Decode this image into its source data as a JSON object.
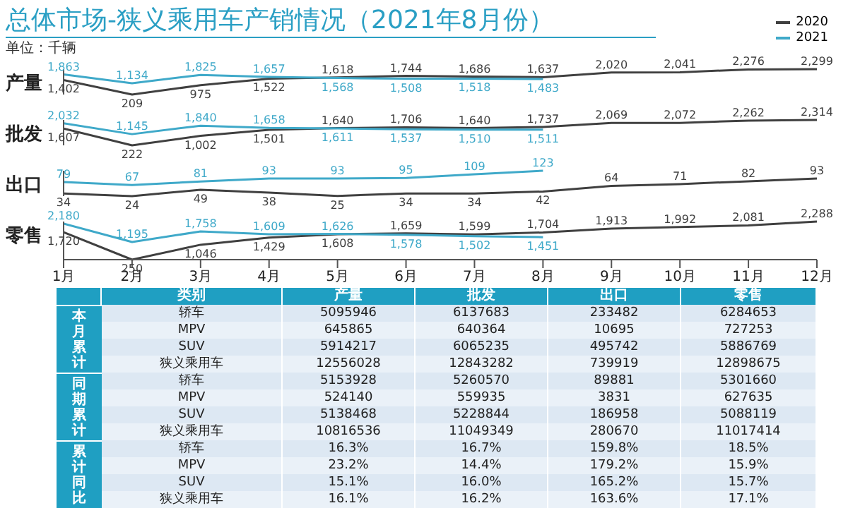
{
  "chart_data": [
    {
      "type": "line",
      "title": "总体市场-狭义乘用车产销情况（2021年8月份）",
      "subtitle": "单位：千辆",
      "ylabel": "产量",
      "categories": [
        null,
        null,
        null,
        null,
        null,
        null,
        null,
        null,
        null,
        null,
        null,
        null
      ],
      "marker": "none",
      "legend": "top right",
      "tick_labels": false,
      "series": [
        {
          "name": "2020",
          "color": "#404040",
          "values": [
            1402,
            209,
            975,
            1522,
            1618,
            1744,
            1686,
            1637,
            2020,
            2041,
            2276,
            2299
          ],
          "value_labels": [
            "1,402",
            "209",
            "975",
            "1,522",
            "1,618",
            "1,744",
            "1,686",
            "1,637",
            "2,020",
            "2,041",
            "2,276",
            "2,299"
          ]
        },
        {
          "name": "2021",
          "color": "#3fa9c9",
          "values": [
            1863,
            1134,
            1825,
            1657,
            1568,
            1508,
            1518,
            1483,
            null,
            null,
            null,
            null
          ],
          "value_labels": [
            "1,863",
            "1,134",
            "1,825",
            "1,657",
            "1,568",
            "1,508",
            "1,518",
            "1,483",
            null,
            null,
            null,
            null
          ]
        }
      ]
    },
    {
      "type": "line",
      "ylabel": "批发",
      "categories": [
        null,
        null,
        null,
        null,
        null,
        null,
        null,
        null,
        null,
        null,
        null,
        null
      ],
      "marker": "none",
      "tick_labels": false,
      "series": [
        {
          "color": "#404040",
          "values": [
            1607,
            222,
            1002,
            1501,
            1640,
            1706,
            1640,
            1737,
            2069,
            2072,
            2262,
            2314
          ],
          "value_labels": [
            "1,607",
            "222",
            "1,002",
            "1,501",
            "1,640",
            "1,706",
            "1,640",
            "1,737",
            "2,069",
            "2,072",
            "2,262",
            "2,314"
          ]
        },
        {
          "color": "#3fa9c9",
          "values": [
            2032,
            1145,
            1840,
            1658,
            1611,
            1537,
            1510,
            1511,
            null,
            null,
            null,
            null
          ],
          "value_labels": [
            "2,032",
            "1,145",
            "1,840",
            "1,658",
            "1,611",
            "1,537",
            "1,510",
            "1,511",
            null,
            null,
            null,
            null
          ]
        }
      ]
    },
    {
      "type": "line",
      "ylabel": "出口",
      "categories": [
        null,
        null,
        null,
        null,
        null,
        null,
        null,
        null,
        null,
        null,
        null,
        null
      ],
      "data_labels": true,
      "marker": "none",
      "tick_labels": false,
      "series": [
        {
          "color": "#404040",
          "values": [
            34,
            24,
            49,
            38,
            25,
            34,
            34,
            42,
            64,
            71,
            82,
            93
          ]
        },
        {
          "color": "#3fa9c9",
          "values": [
            79,
            67,
            81,
            93,
            93,
            95,
            109,
            123,
            null,
            null,
            null,
            null
          ]
        }
      ]
    },
    {
      "type": "line",
      "ylabel": "零售",
      "categories": [
        "1月",
        "2月",
        "3月",
        "4月",
        "5月",
        "6月",
        "7月",
        "8月",
        "9月",
        "10月",
        "11月",
        "12月"
      ],
      "marker": "none",
      "tick_labels": "x",
      "series": [
        {
          "color": "#404040",
          "values": [
            1720,
            250,
            1046,
            1429,
            1608,
            1659,
            1599,
            1704,
            1913,
            1992,
            2081,
            2288
          ],
          "value_labels": [
            "1,720",
            "250",
            "1,046",
            "1,429",
            "1,608",
            "1,659",
            "1,599",
            "1,704",
            "1,913",
            "1,992",
            "2,081",
            "2,288"
          ]
        },
        {
          "color": "#3fa9c9",
          "values": [
            2180,
            1195,
            1758,
            1609,
            1626,
            1578,
            1502,
            1451,
            null,
            null,
            null,
            null
          ],
          "value_labels": [
            "2,180",
            "1,195",
            "1,758",
            "1,609",
            "1,626",
            "1,578",
            "1,502",
            "1,451",
            null,
            null,
            null,
            null
          ]
        }
      ]
    },
    {
      "type": "other",
      "ylabel": "类别",
      "categories": [
        "产量",
        "批发",
        "出口",
        "零售"
      ],
      "y_categories": [
        "轿车",
        "MPV",
        "SUV",
        "狭义乘用车",
        "轿车",
        "MPV",
        "SUV",
        "狭义乘用车",
        "轿车",
        "MPV",
        "SUV",
        "狭义乘用车"
      ],
      "annotations": [
        "本月累计",
        "同期累计",
        "累计同比"
      ],
      "cell_labels": [
        [
          "5095946",
          "6137683",
          "233482",
          "6284653"
        ],
        [
          "645865",
          "640364",
          "10695",
          "727253"
        ],
        [
          "5914217",
          "6065235",
          "495742",
          "5886769"
        ],
        [
          "12556028",
          "12843282",
          "739919",
          "12898675"
        ],
        [
          "5153928",
          "5260570",
          "89881",
          "5301660"
        ],
        [
          "524140",
          "559935",
          "3831",
          "627635"
        ],
        [
          "5138468",
          "5228844",
          "186958",
          "5088119"
        ],
        [
          "10816536",
          "11049349",
          "280670",
          "11017414"
        ],
        [
          "16.3%",
          "16.7%",
          "159.8%",
          "18.5%"
        ],
        [
          "23.2%",
          "14.4%",
          "179.2%",
          "15.9%"
        ],
        [
          "15.1%",
          "16.0%",
          "165.2%",
          "15.7%"
        ],
        [
          "16.1%",
          "16.2%",
          "163.6%",
          "17.1%"
        ]
      ]
    }
  ]
}
